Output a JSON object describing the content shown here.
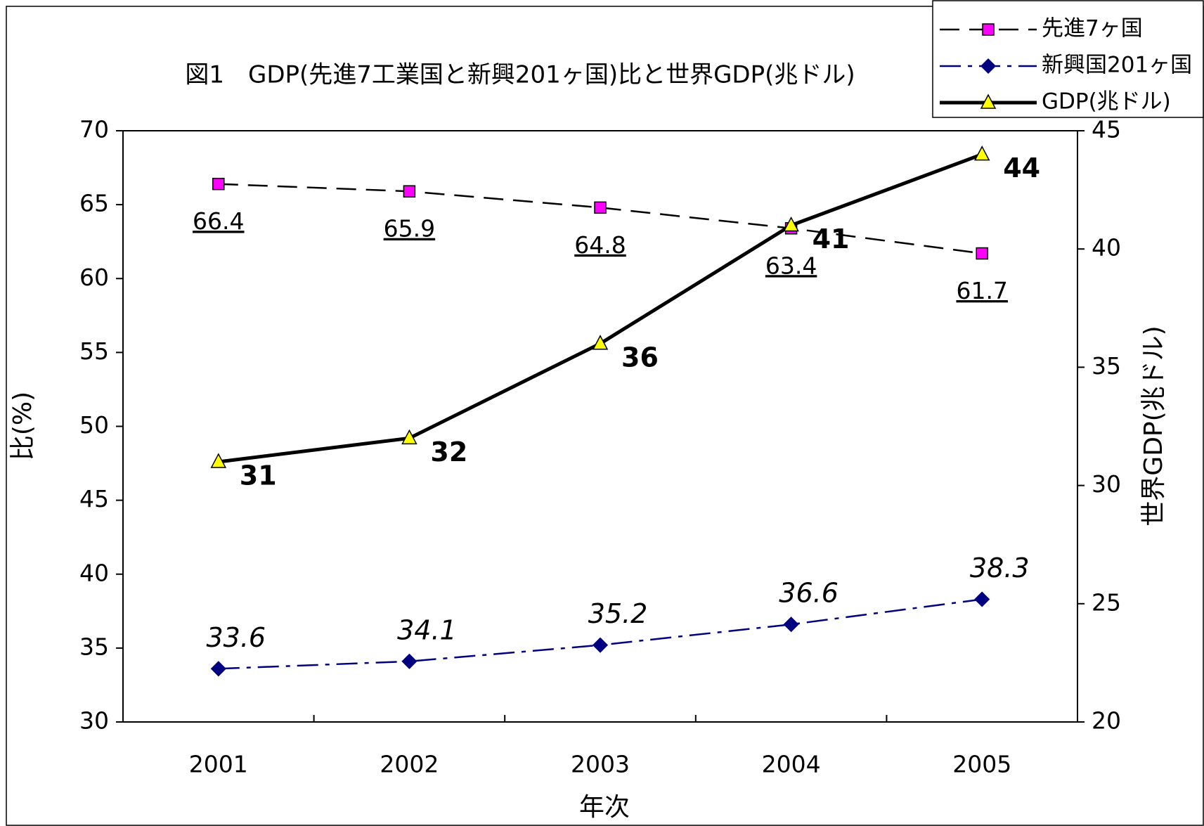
{
  "chart_data": {
    "type": "line",
    "title": "図1　GDP(先進7工業国と新興201ヶ国)比と世界GDP(兆ドル)",
    "x_label": "年次",
    "y_label": "比(%)",
    "y2_label": "世界GDP(兆ドル)",
    "categories": [
      "2001",
      "2002",
      "2003",
      "2004",
      "2005"
    ],
    "ylim": [
      30,
      70
    ],
    "yticks": [
      30,
      35,
      40,
      45,
      50,
      55,
      60,
      65,
      70
    ],
    "y2lim": [
      20,
      45
    ],
    "y2ticks": [
      20,
      25,
      30,
      35,
      40,
      45
    ],
    "legend": "top-right",
    "series": [
      {
        "name": "先進7ヶ国",
        "color": "#ff00ff",
        "line_color": "#000000",
        "marker": "square",
        "dash": "dashed",
        "label_style": "underline",
        "values": [
          66.4,
          65.9,
          64.8,
          63.4,
          61.7
        ]
      },
      {
        "name": "新興国201ヶ国",
        "color": "#000080",
        "line_color": "#000080",
        "marker": "diamond",
        "dash": "dashdot",
        "label_style": "italic",
        "values": [
          33.6,
          34.1,
          35.2,
          36.6,
          38.3
        ]
      },
      {
        "name": "GDP(兆ドル)",
        "color": "#ffff00",
        "line_color": "#000000",
        "marker": "triangle",
        "dash": "solid",
        "label_style": "bold",
        "axis": "y2",
        "values": [
          31,
          32,
          36,
          41,
          44
        ]
      }
    ]
  }
}
